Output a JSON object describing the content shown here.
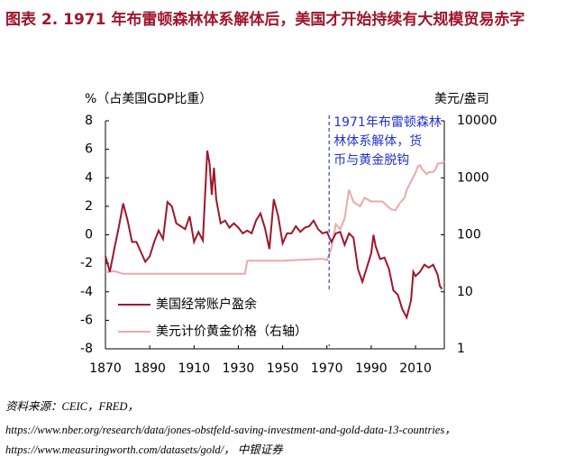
{
  "chart_data": {
    "type": "line",
    "title": "图表  2. 1971 年布雷顿森林体系解体后，美国才开始持续有大规模贸易赤字",
    "y_label": "%（占美国GDP比重）",
    "y2_label": "美元/盎司",
    "annotation": {
      "lines": [
        "1971年布雷顿森林",
        "林体系解体，货",
        "币与黄金脱钩"
      ],
      "x": 1971
    },
    "xlim": [
      1870,
      2023
    ],
    "xticks": [
      1870,
      1890,
      1910,
      1930,
      1950,
      1970,
      1990,
      2010
    ],
    "ylim": [
      -8,
      8
    ],
    "yticks": [
      8,
      6,
      4,
      2,
      0,
      -2,
      -4,
      -6,
      -8
    ],
    "y2lim": [
      1,
      10000
    ],
    "y2ticks": [
      10000,
      1000,
      100,
      10,
      1
    ],
    "y2_log": true,
    "legend": "lower left",
    "series": [
      {
        "name": "美国经常账户盈余",
        "color": "#a0162b",
        "x": [
          1870,
          1872,
          1874,
          1876,
          1878,
          1880,
          1882,
          1884,
          1886,
          1888,
          1890,
          1892,
          1894,
          1896,
          1898,
          1900,
          1902,
          1904,
          1906,
          1908,
          1910,
          1912,
          1914,
          1916,
          1917,
          1918,
          1919,
          1920,
          1922,
          1924,
          1926,
          1928,
          1930,
          1932,
          1934,
          1936,
          1938,
          1940,
          1942,
          1944,
          1946,
          1948,
          1950,
          1952,
          1954,
          1956,
          1958,
          1960,
          1962,
          1964,
          1966,
          1968,
          1970,
          1972,
          1974,
          1976,
          1978,
          1980,
          1982,
          1984,
          1986,
          1988,
          1990,
          1991,
          1992,
          1994,
          1996,
          1998,
          2000,
          2002,
          2004,
          2006,
          2008,
          2009,
          2010,
          2012,
          2014,
          2016,
          2018,
          2020,
          2021,
          2022
        ],
        "values": [
          -1.5,
          -2.6,
          -1.0,
          0.5,
          2.2,
          1.0,
          -0.5,
          -0.5,
          -1.2,
          -1.9,
          -1.5,
          -0.5,
          0.3,
          -0.3,
          2.3,
          2.0,
          0.8,
          0.6,
          0.4,
          1.3,
          -0.5,
          0.2,
          -0.4,
          5.9,
          5.0,
          2.8,
          4.7,
          2.5,
          0.8,
          1.0,
          0.5,
          0.8,
          0.5,
          0.1,
          0.3,
          0.1,
          1.0,
          1.5,
          0.5,
          -1.0,
          2.5,
          1.3,
          -0.6,
          0.1,
          0.1,
          0.6,
          0.2,
          0.5,
          0.6,
          1.0,
          0.4,
          0.1,
          0.2,
          -0.5,
          0.1,
          0.2,
          -0.7,
          0.1,
          -0.2,
          -2.4,
          -3.3,
          -2.3,
          -1.3,
          0.0,
          -0.8,
          -1.7,
          -1.6,
          -2.4,
          -3.9,
          -4.2,
          -5.2,
          -5.8,
          -4.6,
          -2.6,
          -2.9,
          -2.6,
          -2.1,
          -2.3,
          -2.1,
          -2.8,
          -3.6,
          -3.8
        ]
      },
      {
        "name": "美元计价黄金价格（右轴）",
        "color": "#eba9a9",
        "axis": "y2",
        "x": [
          1870,
          1874,
          1878,
          1900,
          1933,
          1934,
          1950,
          1968,
          1970,
          1972,
          1974,
          1976,
          1978,
          1980,
          1982,
          1985,
          1987,
          1990,
          1995,
          1999,
          2001,
          2003,
          2005,
          2006,
          2008,
          2010,
          2011,
          2012,
          2013,
          2015,
          2016,
          2018,
          2019,
          2020,
          2021,
          2022,
          2023
        ],
        "values": [
          22,
          23,
          20.67,
          20.67,
          20.67,
          35,
          35,
          38,
          36,
          58,
          154,
          125,
          193,
          612,
          376,
          317,
          447,
          384,
          384,
          279,
          271,
          363,
          444,
          603,
          872,
          1224,
          1571,
          1669,
          1411,
          1160,
          1250,
          1268,
          1393,
          1770,
          1799,
          1800,
          1940
        ]
      }
    ],
    "source": [
      "资料来源：CEIC，FRED，",
      "https://www.nber.org/research/data/jones-obstfeld-saving-investment-and-gold-data-13-countries，",
      "https://www.measuringworth.com/datasets/gold/，  中银证券"
    ]
  }
}
